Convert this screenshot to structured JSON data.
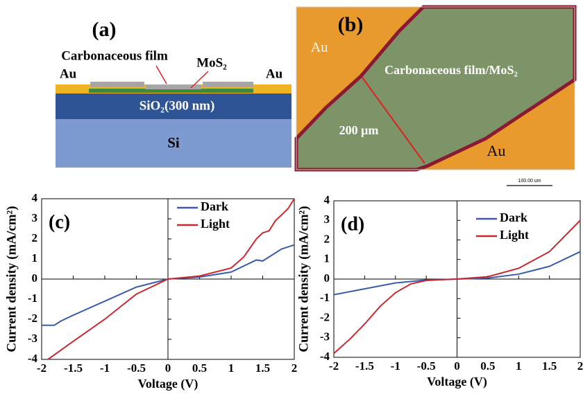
{
  "panel_a": {
    "label": "(a)",
    "film": "Carbonaceous film",
    "mos2": "MoS₂",
    "au_left": "Au",
    "au_right": "Au",
    "sio2": "SiO₂(300 nm)",
    "si": "Si"
  },
  "panel_b": {
    "label": "(b)",
    "au_top": "Au",
    "film": "Carbonaceous film/MoS₂",
    "width": "200 μm",
    "au_bottom": "Au",
    "scale": "100.00 um"
  },
  "chart_data": [
    {
      "type": "line",
      "label": "(c)",
      "xlabel": "Voltage (V)",
      "ylabel": "Current  density  (mA/cm²)",
      "xlim": [
        -2,
        2
      ],
      "ylim": [
        -4,
        4
      ],
      "xticks": [
        -2,
        -1.5,
        -1,
        -0.5,
        0,
        0.5,
        1,
        1.5,
        2
      ],
      "yticks": [
        -4,
        -3,
        -2,
        -1,
        0,
        1,
        2,
        3,
        4
      ],
      "series": [
        {
          "name": "Dark",
          "color": "#3a5bab",
          "x": [
            -2,
            -1.8,
            -1.7,
            -1.5,
            -1,
            -0.5,
            0,
            0.5,
            1,
            1.3,
            1.4,
            1.5,
            1.6,
            1.8,
            2
          ],
          "values": [
            -2.3,
            -2.3,
            -2.1,
            -1.8,
            -1.1,
            -0.4,
            0,
            0.1,
            0.35,
            0.8,
            0.95,
            0.9,
            1.1,
            1.5,
            1.7
          ]
        },
        {
          "name": "Light",
          "color": "#c8282d",
          "x": [
            -1.9,
            -1.5,
            -1,
            -0.5,
            0,
            0.5,
            1,
            1.2,
            1.4,
            1.5,
            1.6,
            1.7,
            1.8,
            1.9,
            2
          ],
          "values": [
            -4,
            -3.1,
            -2,
            -0.75,
            0,
            0.15,
            0.55,
            1.1,
            2,
            2.3,
            2.4,
            2.9,
            3.2,
            3.5,
            4
          ]
        }
      ]
    },
    {
      "type": "line",
      "label": "(d)",
      "xlabel": "Voltage (V)",
      "ylabel": "Current  density  (mA/cm²)",
      "xlim": [
        -2,
        2
      ],
      "ylim": [
        -4,
        4
      ],
      "xticks": [
        -2,
        -1.5,
        -1,
        -0.5,
        0,
        0.5,
        1,
        1.5,
        2
      ],
      "yticks": [
        -4,
        -3,
        -2,
        -1,
        0,
        1,
        2,
        3,
        4
      ],
      "series": [
        {
          "name": "Dark",
          "color": "#3a5bab",
          "x": [
            -2,
            -1.5,
            -1,
            -0.5,
            0,
            0.5,
            1,
            1.5,
            2
          ],
          "values": [
            -0.8,
            -0.5,
            -0.2,
            -0.05,
            0,
            0.05,
            0.25,
            0.65,
            1.4
          ]
        },
        {
          "name": "Light",
          "color": "#c8282d",
          "x": [
            -2,
            -1.75,
            -1.5,
            -1.25,
            -1,
            -0.75,
            -0.5,
            0,
            0.5,
            1,
            1.5,
            2
          ],
          "values": [
            -3.8,
            -3.1,
            -2.3,
            -1.4,
            -0.7,
            -0.25,
            -0.07,
            0,
            0.12,
            0.55,
            1.4,
            3
          ]
        }
      ]
    }
  ]
}
